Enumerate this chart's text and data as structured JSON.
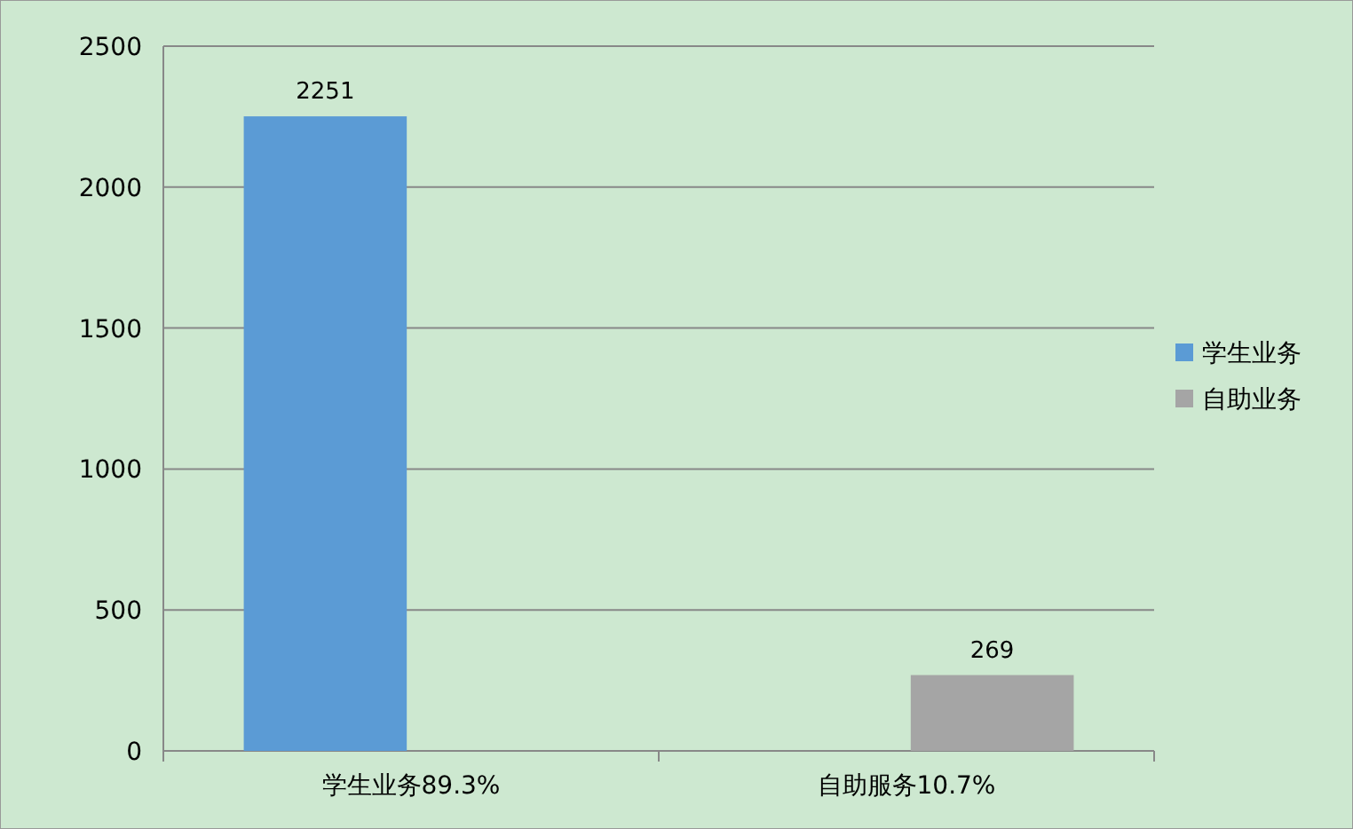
{
  "chart_data": {
    "type": "bar",
    "categories": [
      "学生业务89.3%",
      "自助服务10.7%"
    ],
    "series": [
      {
        "name": "学生业务",
        "color": "#5b9bd5",
        "values": [
          2251,
          null
        ]
      },
      {
        "name": "自助业务",
        "color": "#a5a5a5",
        "values": [
          null,
          269
        ]
      }
    ],
    "ylim": [
      0,
      2500
    ],
    "yticks": [
      0,
      500,
      1000,
      1500,
      2000,
      2500
    ],
    "grid": "y",
    "legend": "right",
    "data_labels": true
  }
}
